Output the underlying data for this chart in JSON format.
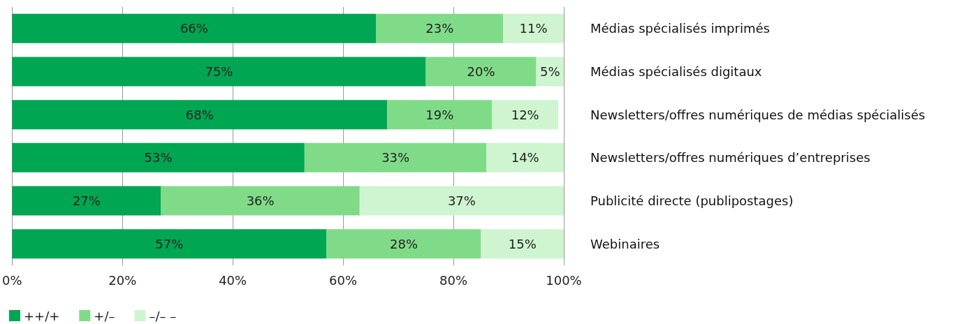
{
  "chart_data": {
    "type": "bar",
    "orientation": "horizontal",
    "stacked": true,
    "categories": [
      "Médias spécialisés imprimés",
      "Médias spécialisés digitaux",
      "Newsletters/offres numériques de médias spécialisés",
      "Newsletters/offres numériques d’entreprises",
      "Publicité directe (publipostages)",
      "Webinaires"
    ],
    "series": [
      {
        "name": "++/+",
        "color": "#00a651",
        "values": [
          66,
          75,
          68,
          53,
          27,
          57
        ],
        "value_labels": [
          "66%",
          "75%",
          "68%",
          "53%",
          "27%",
          "57%"
        ]
      },
      {
        "name": "+/–",
        "color": "#80db88",
        "values": [
          23,
          20,
          19,
          33,
          36,
          28
        ],
        "value_labels": [
          "23%",
          "20%",
          "19%",
          "33%",
          "36%",
          "28%"
        ]
      },
      {
        "name": "–/– –",
        "color": "#cef5d0",
        "values": [
          11,
          5,
          12,
          14,
          37,
          15
        ],
        "value_labels": [
          "11%",
          "5%",
          "12%",
          "14%",
          "37%",
          "15%"
        ]
      }
    ],
    "xlim": [
      0,
      100
    ],
    "xticks": [
      {
        "value": 0,
        "label": "0%"
      },
      {
        "value": 20,
        "label": "20%"
      },
      {
        "value": 40,
        "label": "40%"
      },
      {
        "value": 60,
        "label": "60%"
      },
      {
        "value": 80,
        "label": "80%"
      },
      {
        "value": 100,
        "label": "100%"
      }
    ],
    "grid": "x",
    "legend": "bottom left"
  }
}
